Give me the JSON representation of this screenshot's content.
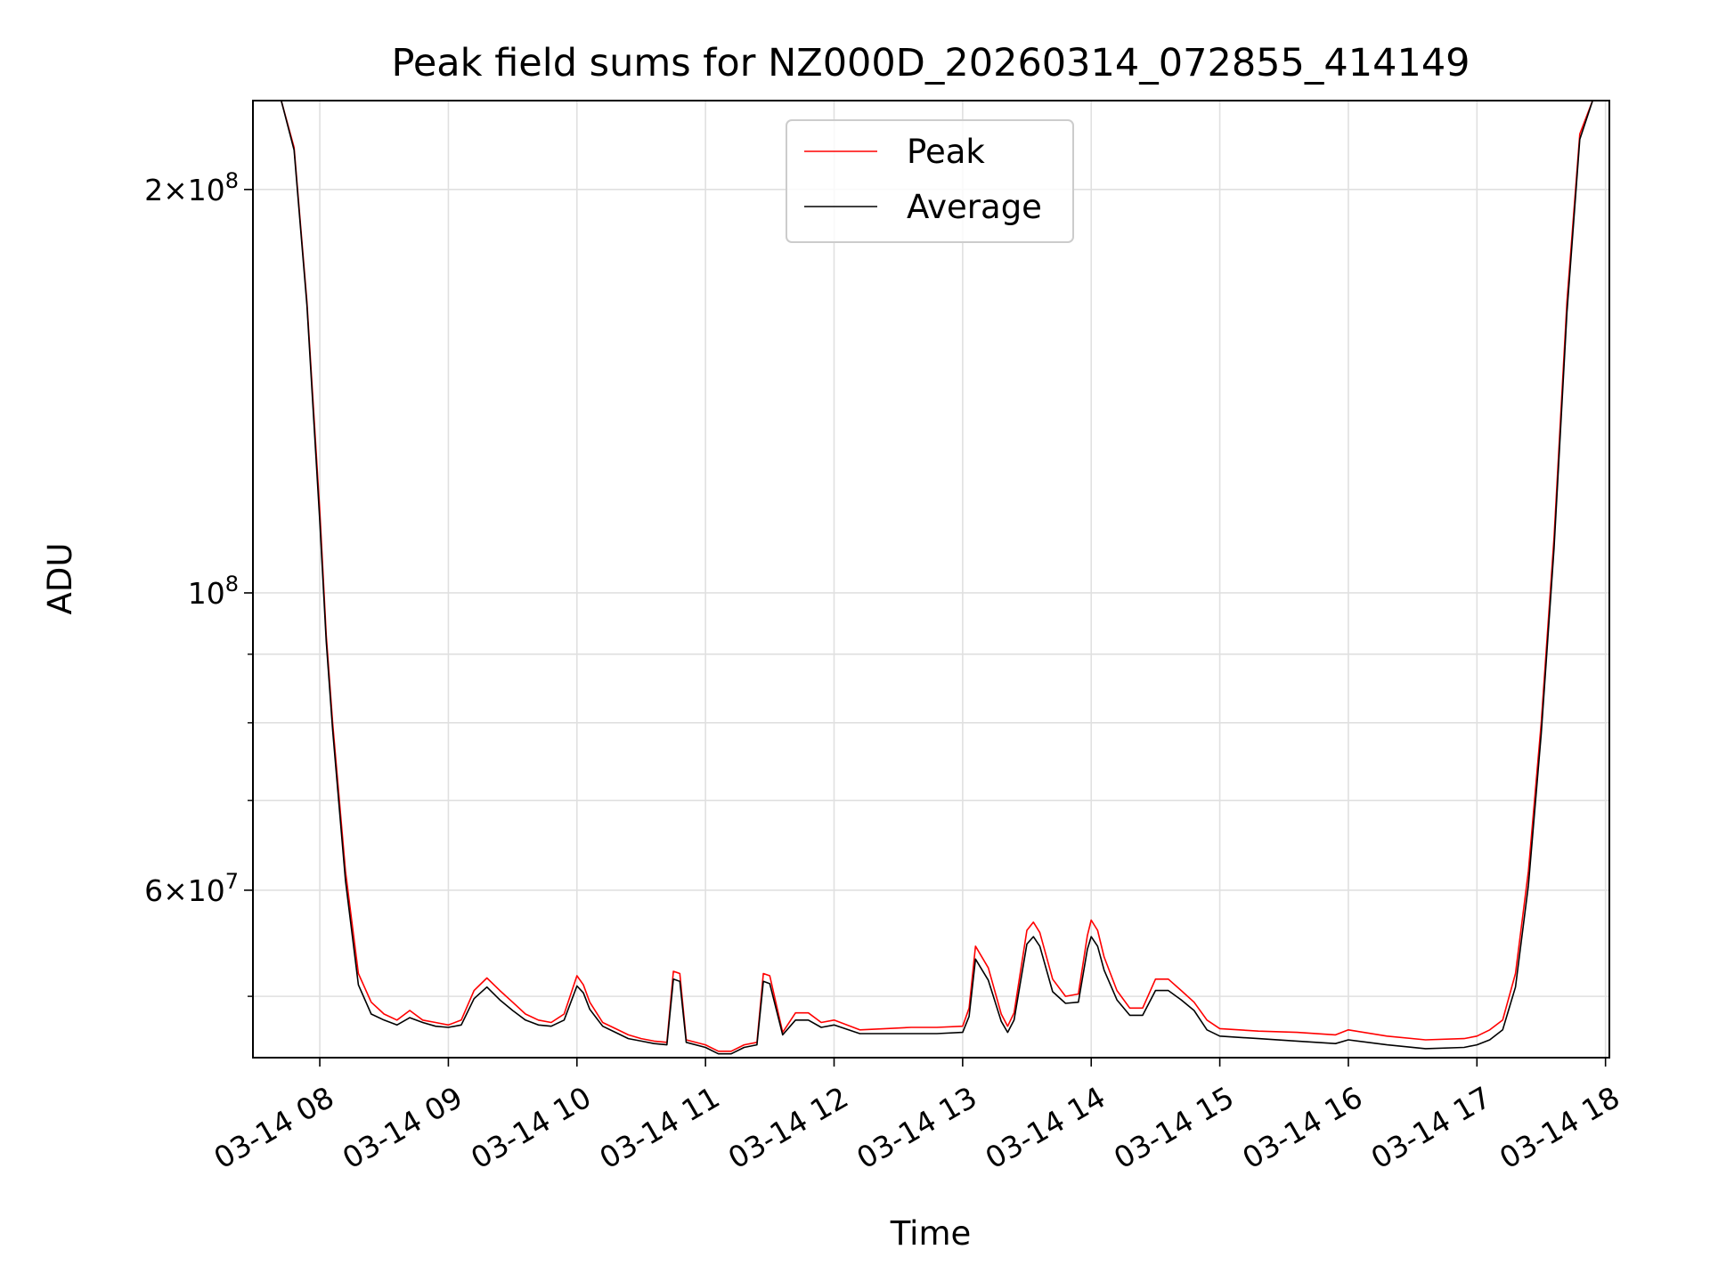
{
  "chart_data": {
    "type": "line",
    "title": "Peak field sums for NZ000D_20260314_072855_414149",
    "xlabel": "Time",
    "ylabel": "ADU",
    "yscale": "log",
    "ylim": [
      45000000,
      233000000
    ],
    "xlim_hours": [
      7.48,
      18.03
    ],
    "grid": true,
    "legend_location": "upper center",
    "x_ticks": [
      {
        "value": 8,
        "label": "03-14 08"
      },
      {
        "value": 9,
        "label": "03-14 09"
      },
      {
        "value": 10,
        "label": "03-14 10"
      },
      {
        "value": 11,
        "label": "03-14 11"
      },
      {
        "value": 12,
        "label": "03-14 12"
      },
      {
        "value": 13,
        "label": "03-14 13"
      },
      {
        "value": 14,
        "label": "03-14 14"
      },
      {
        "value": 15,
        "label": "03-14 15"
      },
      {
        "value": 16,
        "label": "03-14 16"
      },
      {
        "value": 17,
        "label": "03-14 17"
      },
      {
        "value": 18,
        "label": "03-14 18"
      }
    ],
    "y_ticks": [
      {
        "value": 60000000,
        "base": "6×10",
        "exp": "7"
      },
      {
        "value": 100000000,
        "base": "10",
        "exp": "8"
      },
      {
        "value": 200000000,
        "base": "2×10",
        "exp": "8"
      }
    ],
    "y_minor_ticks": [
      50000000,
      70000000,
      80000000,
      90000000
    ],
    "series": [
      {
        "name": "Peak",
        "color": "#ff0000",
        "x": [
          7.5,
          7.7,
          7.8,
          7.9,
          8.0,
          8.05,
          8.1,
          8.2,
          8.3,
          8.4,
          8.5,
          8.6,
          8.7,
          8.8,
          8.9,
          9.0,
          9.1,
          9.2,
          9.3,
          9.4,
          9.5,
          9.6,
          9.7,
          9.8,
          9.9,
          10.0,
          10.05,
          10.1,
          10.2,
          10.3,
          10.4,
          10.5,
          10.6,
          10.7,
          10.75,
          10.8,
          10.85,
          11.0,
          11.1,
          11.2,
          11.3,
          11.4,
          11.45,
          11.5,
          11.6,
          11.7,
          11.8,
          11.9,
          12.0,
          12.2,
          12.4,
          12.6,
          12.8,
          13.0,
          13.05,
          13.1,
          13.2,
          13.3,
          13.35,
          13.4,
          13.5,
          13.55,
          13.6,
          13.7,
          13.8,
          13.9,
          13.97,
          14.0,
          14.05,
          14.1,
          14.2,
          14.3,
          14.4,
          14.5,
          14.6,
          14.7,
          14.8,
          14.9,
          15.0,
          15.3,
          15.6,
          15.9,
          16.0,
          16.3,
          16.6,
          16.9,
          17.0,
          17.1,
          17.2,
          17.3,
          17.4,
          17.5,
          17.6,
          17.7,
          17.8,
          17.9,
          18.0
        ],
        "values": [
          233000000,
          233000000,
          215000000,
          165000000,
          115000000,
          93000000,
          80000000,
          62000000,
          52000000,
          49500000,
          48500000,
          48000000,
          48800000,
          48000000,
          47800000,
          47600000,
          48000000,
          50500000,
          51600000,
          50500000,
          49500000,
          48500000,
          48000000,
          47800000,
          48500000,
          51800000,
          51000000,
          49500000,
          47800000,
          47300000,
          46800000,
          46500000,
          46300000,
          46200000,
          52200000,
          52000000,
          46400000,
          46000000,
          45500000,
          45500000,
          46000000,
          46200000,
          52000000,
          51800000,
          47000000,
          48600000,
          48600000,
          47800000,
          48000000,
          47200000,
          47300000,
          47400000,
          47400000,
          47500000,
          49000000,
          54500000,
          52500000,
          48500000,
          47500000,
          48600000,
          56000000,
          56800000,
          55800000,
          51500000,
          50000000,
          50200000,
          55500000,
          57000000,
          56000000,
          53500000,
          50500000,
          49000000,
          49000000,
          51500000,
          51500000,
          50500000,
          49500000,
          48000000,
          47300000,
          47100000,
          47000000,
          46800000,
          47200000,
          46700000,
          46400000,
          46500000,
          46700000,
          47200000,
          48000000,
          52000000,
          62000000,
          80000000,
          110000000,
          165000000,
          220000000,
          233000000,
          233000000
        ]
      },
      {
        "name": "Average",
        "color": "#000000",
        "x": [
          7.5,
          7.7,
          7.8,
          7.9,
          8.0,
          8.05,
          8.1,
          8.2,
          8.3,
          8.4,
          8.5,
          8.6,
          8.7,
          8.8,
          8.9,
          9.0,
          9.1,
          9.2,
          9.3,
          9.4,
          9.5,
          9.6,
          9.7,
          9.8,
          9.9,
          10.0,
          10.05,
          10.1,
          10.2,
          10.3,
          10.4,
          10.5,
          10.6,
          10.7,
          10.75,
          10.8,
          10.85,
          11.0,
          11.1,
          11.2,
          11.3,
          11.4,
          11.45,
          11.5,
          11.6,
          11.7,
          11.8,
          11.9,
          12.0,
          12.2,
          12.4,
          12.6,
          12.8,
          13.0,
          13.05,
          13.1,
          13.2,
          13.3,
          13.35,
          13.4,
          13.5,
          13.55,
          13.6,
          13.7,
          13.8,
          13.9,
          13.97,
          14.0,
          14.05,
          14.1,
          14.2,
          14.3,
          14.4,
          14.5,
          14.6,
          14.7,
          14.8,
          14.9,
          15.0,
          15.3,
          15.6,
          15.9,
          16.0,
          16.3,
          16.6,
          16.9,
          17.0,
          17.1,
          17.2,
          17.3,
          17.4,
          17.5,
          17.6,
          17.7,
          17.8,
          17.9,
          18.0
        ],
        "values": [
          233000000,
          233000000,
          214000000,
          164000000,
          113000000,
          92000000,
          79000000,
          61000000,
          51000000,
          48500000,
          48000000,
          47600000,
          48200000,
          47800000,
          47500000,
          47400000,
          47600000,
          49800000,
          50800000,
          49700000,
          48800000,
          48000000,
          47600000,
          47500000,
          48000000,
          50900000,
          50300000,
          48900000,
          47500000,
          47000000,
          46500000,
          46300000,
          46100000,
          46000000,
          51500000,
          51300000,
          46200000,
          45800000,
          45300000,
          45300000,
          45800000,
          46000000,
          51300000,
          51100000,
          46800000,
          48000000,
          48000000,
          47400000,
          47600000,
          46900000,
          46900000,
          46900000,
          46900000,
          47000000,
          48300000,
          53300000,
          51400000,
          47900000,
          47000000,
          48000000,
          54700000,
          55400000,
          54500000,
          50400000,
          49400000,
          49500000,
          54200000,
          55400000,
          54500000,
          52300000,
          49700000,
          48400000,
          48400000,
          50500000,
          50500000,
          49700000,
          48800000,
          47200000,
          46700000,
          46500000,
          46300000,
          46100000,
          46400000,
          46000000,
          45700000,
          45800000,
          46000000,
          46400000,
          47200000,
          50800000,
          60500000,
          78500000,
          108000000,
          162000000,
          218000000,
          233000000,
          233000000
        ]
      }
    ]
  }
}
